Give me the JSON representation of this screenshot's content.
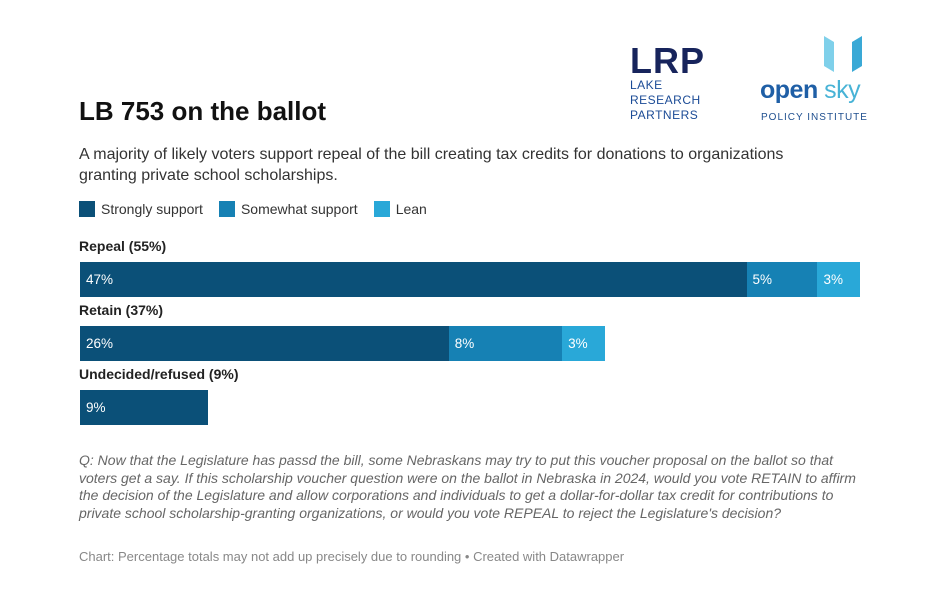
{
  "header": {
    "title": "LB 753 on the ballot",
    "subtitle": "A majority of likely voters support repeal of the bill creating tax credits for donations to organizations granting private school scholarships."
  },
  "logos": {
    "lrp": {
      "mark": "LRP",
      "line1": "LAKE",
      "line2": "RESEARCH",
      "line3": "PARTNERS"
    },
    "open_sky": {
      "word_open": "open",
      "word_sky": "sky",
      "tagline": "POLICY INSTITUTE"
    }
  },
  "colors": {
    "strong": "#0b5078",
    "somewhat": "#1681b4",
    "lean": "#29a8d8"
  },
  "legend": [
    "Strongly support",
    "Somewhat support",
    "Lean"
  ],
  "chart_data": {
    "type": "bar",
    "orientation": "horizontal",
    "stacked": true,
    "title": "LB 753 on the ballot",
    "categories": [
      "Repeal (55%)",
      "Retain (37%)",
      "Undecided/refused (9%)"
    ],
    "series": [
      {
        "name": "Strongly support",
        "values": [
          47,
          26,
          9
        ],
        "labels": [
          "47%",
          "26%",
          "9%"
        ]
      },
      {
        "name": "Somewhat support",
        "values": [
          5,
          8,
          0
        ],
        "labels": [
          "5%",
          "8%",
          ""
        ]
      },
      {
        "name": "Lean",
        "values": [
          3,
          3,
          0
        ],
        "labels": [
          "3%",
          "3%",
          ""
        ]
      }
    ],
    "xlim": [
      0,
      55
    ],
    "grid": false,
    "legend_position": "top-left"
  },
  "footer": {
    "question": "Q: Now that the Legislature has passd the bill, some Nebraskans may try to put this voucher proposal on the ballot so that voters get a say. If this scholarship voucher question were on the ballot in Nebraska in 2024, would you vote RETAIN to affirm the decision of the Legislature and allow corporations and individuals to get a dollar-for-dollar tax credit for contributions to private school scholarship-granting organizations, or would you vote REPEAL to reject the Legislature's decision?",
    "notes": "Chart: Percentage totals may not add up precisely due to rounding • Created with Datawrapper"
  }
}
